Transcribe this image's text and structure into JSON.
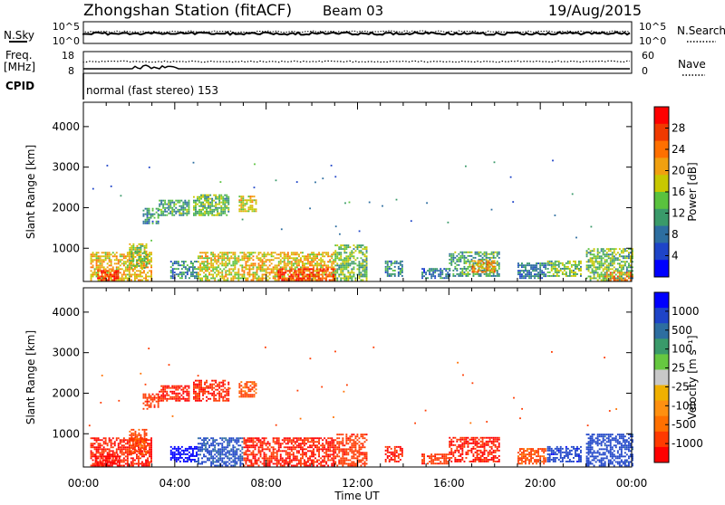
{
  "header": {
    "station": "Zhongshan Station (fitACF)",
    "beam": "Beam 03",
    "date": "19/Aug/2015"
  },
  "noise_panel": {
    "left_label": "N.Sky",
    "right_label": "N.Search",
    "ticks_left": [
      "10^5",
      "10^0"
    ],
    "ticks_right": [
      "10^5",
      "10^0"
    ]
  },
  "freq_panel": {
    "left_label_line1": "Freq.",
    "left_label_line2": "[MHz]",
    "left_ticks": [
      "18",
      "8"
    ],
    "right_label": "Nave",
    "right_ticks": [
      "60",
      "0"
    ]
  },
  "cpid": {
    "label": "CPID",
    "text": "normal (fast stereo) 153"
  },
  "chart_data": [
    {
      "type": "heatmap",
      "name": "power",
      "ylabel": "Slant Range [km]",
      "yticks": [
        "4000",
        "3000",
        "2000",
        "1000"
      ],
      "xticks": [
        "00:00",
        "04:00",
        "08:00",
        "12:00",
        "16:00",
        "20:00",
        "00:00"
      ],
      "xlabel": "Time UT",
      "ylim": [
        180,
        4600
      ],
      "xlim_hours": [
        0,
        24
      ],
      "colorbar_label": "Power [dB]",
      "colorbar_ticks": [
        "28",
        "24",
        "20",
        "16",
        "12",
        "8",
        "4"
      ],
      "colors": [
        "#0000ff",
        "#1e44c8",
        "#2d6ea0",
        "#3a9a6a",
        "#5ac23e",
        "#c8c800",
        "#f0a010",
        "#ff7000",
        "#f03a00",
        "#ff0000"
      ],
      "regions": [
        {
          "t": [
            0.3,
            3.0
          ],
          "r": [
            200,
            900
          ],
          "v": 20
        },
        {
          "t": [
            0.6,
            1.5
          ],
          "r": [
            200,
            450
          ],
          "v": 28
        },
        {
          "t": [
            2.0,
            2.8
          ],
          "r": [
            500,
            1100
          ],
          "v": 16
        },
        {
          "t": [
            2.6,
            3.3
          ],
          "r": [
            1600,
            2000
          ],
          "v": 10
        },
        {
          "t": [
            3.3,
            4.6
          ],
          "r": [
            1800,
            2200
          ],
          "v": 12
        },
        {
          "t": [
            4.8,
            6.4
          ],
          "r": [
            1800,
            2300
          ],
          "v": 14
        },
        {
          "t": [
            6.8,
            7.6
          ],
          "r": [
            1900,
            2300
          ],
          "v": 18
        },
        {
          "t": [
            3.8,
            5.0
          ],
          "r": [
            250,
            700
          ],
          "v": 10
        },
        {
          "t": [
            5.0,
            7.0
          ],
          "r": [
            200,
            900
          ],
          "v": 18
        },
        {
          "t": [
            7.0,
            11.0
          ],
          "r": [
            200,
            900
          ],
          "v": 20
        },
        {
          "t": [
            8.5,
            11.0
          ],
          "r": [
            200,
            500
          ],
          "v": 28
        },
        {
          "t": [
            11.0,
            12.4
          ],
          "r": [
            200,
            1100
          ],
          "v": 14
        },
        {
          "t": [
            13.2,
            14.0
          ],
          "r": [
            300,
            700
          ],
          "v": 10
        },
        {
          "t": [
            14.8,
            16.0
          ],
          "r": [
            250,
            500
          ],
          "v": 8
        },
        {
          "t": [
            16.0,
            18.2
          ],
          "r": [
            300,
            900
          ],
          "v": 12
        },
        {
          "t": [
            17.0,
            18.0
          ],
          "r": [
            400,
            700
          ],
          "v": 22
        },
        {
          "t": [
            19.0,
            20.2
          ],
          "r": [
            250,
            650
          ],
          "v": 8
        },
        {
          "t": [
            20.3,
            21.8
          ],
          "r": [
            300,
            700
          ],
          "v": 14
        },
        {
          "t": [
            22.0,
            24.0
          ],
          "r": [
            200,
            1000
          ],
          "v": 14
        },
        {
          "t": [
            22.8,
            24.0
          ],
          "r": [
            200,
            400
          ],
          "v": 22
        }
      ]
    },
    {
      "type": "heatmap",
      "name": "velocity",
      "ylabel": "Slant Range [km]",
      "yticks": [
        "4000",
        "3000",
        "2000",
        "1000"
      ],
      "xticks": [
        "00:00",
        "04:00",
        "08:00",
        "12:00",
        "16:00",
        "20:00",
        "00:00"
      ],
      "xlabel": "Time UT",
      "ylim": [
        180,
        4600
      ],
      "xlim_hours": [
        0,
        24
      ],
      "colorbar_label": "Velocity [m s⁻¹]",
      "colorbar_ticks": [
        "1000",
        "500",
        "100",
        "25",
        "-25",
        "-100",
        "-500",
        "-1000"
      ],
      "colors": [
        "#ff0000",
        "#ff3a00",
        "#ff7000",
        "#ff9010",
        "#f0b000",
        "#c8c8c8",
        "#66c840",
        "#3a9a6a",
        "#2d6ea0",
        "#1e44c8",
        "#0000ff"
      ],
      "regions": [
        {
          "t": [
            0.3,
            3.0
          ],
          "r": [
            200,
            900
          ],
          "v": -300
        },
        {
          "t": [
            0.5,
            1.6
          ],
          "r": [
            200,
            500
          ],
          "v": -500
        },
        {
          "t": [
            2.0,
            2.8
          ],
          "r": [
            500,
            1100
          ],
          "v": -100
        },
        {
          "t": [
            2.6,
            3.3
          ],
          "r": [
            1600,
            2000
          ],
          "v": -200
        },
        {
          "t": [
            3.3,
            4.6
          ],
          "r": [
            1800,
            2200
          ],
          "v": -300
        },
        {
          "t": [
            4.8,
            6.4
          ],
          "r": [
            1800,
            2300
          ],
          "v": -250
        },
        {
          "t": [
            6.8,
            7.6
          ],
          "r": [
            1900,
            2300
          ],
          "v": -100
        },
        {
          "t": [
            3.8,
            5.0
          ],
          "r": [
            300,
            700
          ],
          "v": 500
        },
        {
          "t": [
            5.0,
            7.0
          ],
          "r": [
            200,
            900
          ],
          "v": 100
        },
        {
          "t": [
            7.0,
            11.0
          ],
          "r": [
            200,
            900
          ],
          "v": -300
        },
        {
          "t": [
            11.0,
            12.4
          ],
          "r": [
            200,
            1000
          ],
          "v": -200
        },
        {
          "t": [
            13.2,
            14.0
          ],
          "r": [
            300,
            700
          ],
          "v": -300
        },
        {
          "t": [
            14.8,
            16.0
          ],
          "r": [
            250,
            500
          ],
          "v": -200
        },
        {
          "t": [
            16.0,
            18.2
          ],
          "r": [
            300,
            900
          ],
          "v": -300
        },
        {
          "t": [
            19.0,
            20.2
          ],
          "r": [
            250,
            650
          ],
          "v": -100
        },
        {
          "t": [
            20.3,
            21.8
          ],
          "r": [
            300,
            700
          ],
          "v": 200
        },
        {
          "t": [
            22.0,
            24.0
          ],
          "r": [
            200,
            1000
          ],
          "v": 150
        }
      ]
    }
  ]
}
